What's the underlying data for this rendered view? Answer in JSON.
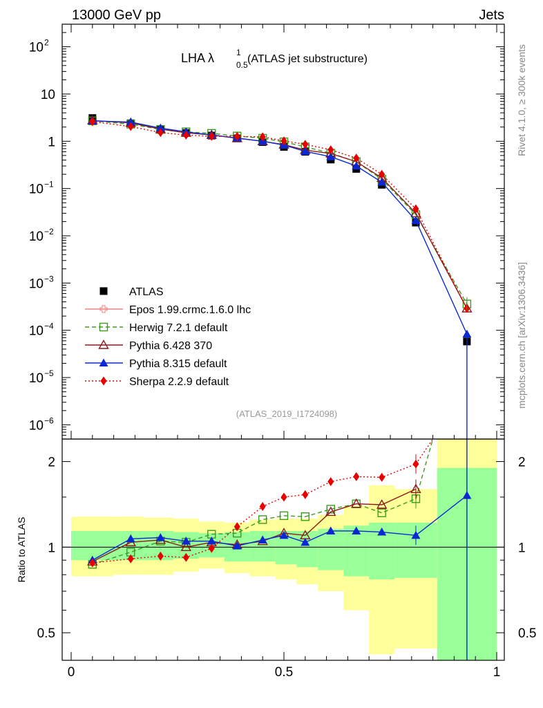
{
  "header": {
    "left": "13000 GeV pp",
    "right": "Jets"
  },
  "side_text": {
    "rivet": "Rivet 4.1.0, ≥ 300k events",
    "mcplots": "mcplots.cern.ch [arXiv:1306.3436]"
  },
  "title": {
    "main": "LHA λ",
    "sup": "1",
    "sub": "0.5",
    "rest": " (ATLAS jet substructure)"
  },
  "analysis_id": "(ATLAS_2019_I1724098)",
  "colors": {
    "epos": "#f08080",
    "herwig": "#3c9b1e",
    "pythia6": "#8b1a1a",
    "pythia8": "#0a28d2",
    "sherpa": "#e60000",
    "band_yellow": "#ffff99",
    "band_green": "#99ff99"
  },
  "chart_data": [
    {
      "type": "scatter",
      "scale": "log",
      "xlim": [
        0,
        1
      ],
      "ylim": [
        5e-07,
        300
      ],
      "yticks": [
        {
          "v": 100,
          "b": "10",
          "e": "2"
        },
        {
          "v": 10,
          "b": "10",
          "e": ""
        },
        {
          "v": 1,
          "b": "1",
          "e": ""
        },
        {
          "v": 0.1,
          "b": "10",
          "e": "−1"
        },
        {
          "v": 0.01,
          "b": "10",
          "e": "−2"
        },
        {
          "v": 0.001,
          "b": "10",
          "e": "−3"
        },
        {
          "v": 0.0001,
          "b": "10",
          "e": "−4"
        },
        {
          "v": 1e-05,
          "b": "10",
          "e": "−5"
        },
        {
          "v": 1e-06,
          "b": "10",
          "e": "−6"
        }
      ],
      "x": [
        0.05,
        0.14,
        0.21,
        0.27,
        0.33,
        0.39,
        0.45,
        0.5,
        0.55,
        0.61,
        0.67,
        0.73,
        0.81,
        0.93
      ],
      "series": [
        {
          "name": "ATLAS",
          "key": "atlas",
          "marker": "square-filled",
          "values": [
            3.1,
            2.4,
            1.75,
            1.5,
            1.32,
            1.15,
            0.96,
            0.76,
            0.6,
            0.41,
            0.26,
            0.12,
            0.019,
            5.8e-05
          ]
        },
        {
          "name": "Epos 1.99.crmc.1.6.0 lhc",
          "key": "epos",
          "marker": "cross-open",
          "values": []
        },
        {
          "name": "Herwig 7.2.1 default",
          "key": "herwig",
          "marker": "square-open",
          "values": [
            2.7,
            2.3,
            1.78,
            1.58,
            1.47,
            1.29,
            1.16,
            0.97,
            0.76,
            0.56,
            0.37,
            0.157,
            0.028,
            0.00036
          ]
        },
        {
          "name": "Pythia 6.428 370",
          "key": "pythia6",
          "marker": "triangle-open",
          "values": [
            2.75,
            2.45,
            1.8,
            1.51,
            1.36,
            1.16,
            1.0,
            0.85,
            0.65,
            0.55,
            0.37,
            0.168,
            0.03,
            0.00029
          ]
        },
        {
          "name": "Pythia 8.315 default",
          "key": "pythia8",
          "marker": "triangle-filled",
          "values": [
            2.7,
            2.55,
            1.9,
            1.58,
            1.36,
            1.17,
            1.0,
            0.83,
            0.61,
            0.47,
            0.3,
            0.136,
            0.021,
            8.3e-05
          ]
        },
        {
          "name": "Sherpa 2.2.9 default",
          "key": "sherpa",
          "marker": "diamond-filled",
          "values": [
            2.6,
            2.05,
            1.53,
            1.35,
            1.27,
            1.27,
            1.24,
            1.02,
            0.86,
            0.66,
            0.44,
            0.2,
            0.037,
            0.00029
          ]
        }
      ]
    },
    {
      "type": "ratio",
      "ylabel": "Ratio to ATLAS",
      "xlabel": "",
      "xlim": [
        0,
        1
      ],
      "ylim": [
        0.4,
        2.4
      ],
      "yticks": [
        {
          "v": 0.5,
          "label": "0.5"
        },
        {
          "v": 1,
          "label": "1"
        },
        {
          "v": 2,
          "label": "2"
        }
      ],
      "xticks": [
        {
          "v": 0,
          "label": "0"
        },
        {
          "v": 0.5,
          "label": "0.5"
        },
        {
          "v": 1,
          "label": "1"
        }
      ],
      "bands": {
        "edges": [
          0,
          0.1,
          0.17,
          0.24,
          0.3,
          0.36,
          0.42,
          0.48,
          0.53,
          0.58,
          0.64,
          0.7,
          0.76,
          0.86,
          1.0
        ],
        "yellow": [
          [
            0.79,
            1.28
          ],
          [
            0.8,
            1.28
          ],
          [
            0.8,
            1.27
          ],
          [
            0.82,
            1.26
          ],
          [
            0.84,
            1.23
          ],
          [
            0.81,
            1.22
          ],
          [
            0.79,
            1.25
          ],
          [
            0.77,
            1.26
          ],
          [
            0.74,
            1.26
          ],
          [
            0.7,
            1.3
          ],
          [
            0.6,
            1.4
          ],
          [
            0.42,
            1.65
          ],
          [
            0.44,
            1.6
          ],
          [
            0.3,
            2.5
          ]
        ],
        "green": [
          [
            0.9,
            1.14
          ],
          [
            0.9,
            1.14
          ],
          [
            0.9,
            1.14
          ],
          [
            0.91,
            1.13
          ],
          [
            0.92,
            1.12
          ],
          [
            0.89,
            1.13
          ],
          [
            0.89,
            1.14
          ],
          [
            0.87,
            1.14
          ],
          [
            0.85,
            1.14
          ],
          [
            0.83,
            1.16
          ],
          [
            0.79,
            1.19
          ],
          [
            0.77,
            1.22
          ],
          [
            0.78,
            1.22
          ],
          [
            0.3,
            1.9
          ]
        ]
      },
      "x": [
        0.05,
        0.14,
        0.21,
        0.27,
        0.33,
        0.39,
        0.45,
        0.5,
        0.55,
        0.61,
        0.67,
        0.73,
        0.81
      ],
      "series": [
        {
          "key": "herwig",
          "values": [
            0.87,
            0.96,
            1.05,
            1.04,
            1.11,
            1.12,
            1.25,
            1.29,
            1.28,
            1.36,
            1.42,
            1.32,
            1.48
          ],
          "end": [
            0.85,
            2.4
          ]
        },
        {
          "key": "pythia6",
          "values": [
            0.89,
            1.04,
            1.06,
            1.0,
            1.04,
            1.02,
            1.05,
            1.12,
            1.1,
            1.33,
            1.42,
            1.41,
            1.6
          ]
        },
        {
          "key": "pythia8",
          "values": [
            0.9,
            1.07,
            1.08,
            1.05,
            1.05,
            1.01,
            1.06,
            1.1,
            1.04,
            1.14,
            1.14,
            1.13,
            1.1
          ],
          "end": [
            0.93,
            1.52
          ],
          "drop": true
        },
        {
          "key": "sherpa",
          "values": [
            0.88,
            0.91,
            0.93,
            0.92,
            0.99,
            1.18,
            1.39,
            1.5,
            1.53,
            1.7,
            1.77,
            1.76,
            1.96
          ],
          "end": [
            0.85,
            2.4
          ]
        }
      ]
    }
  ]
}
